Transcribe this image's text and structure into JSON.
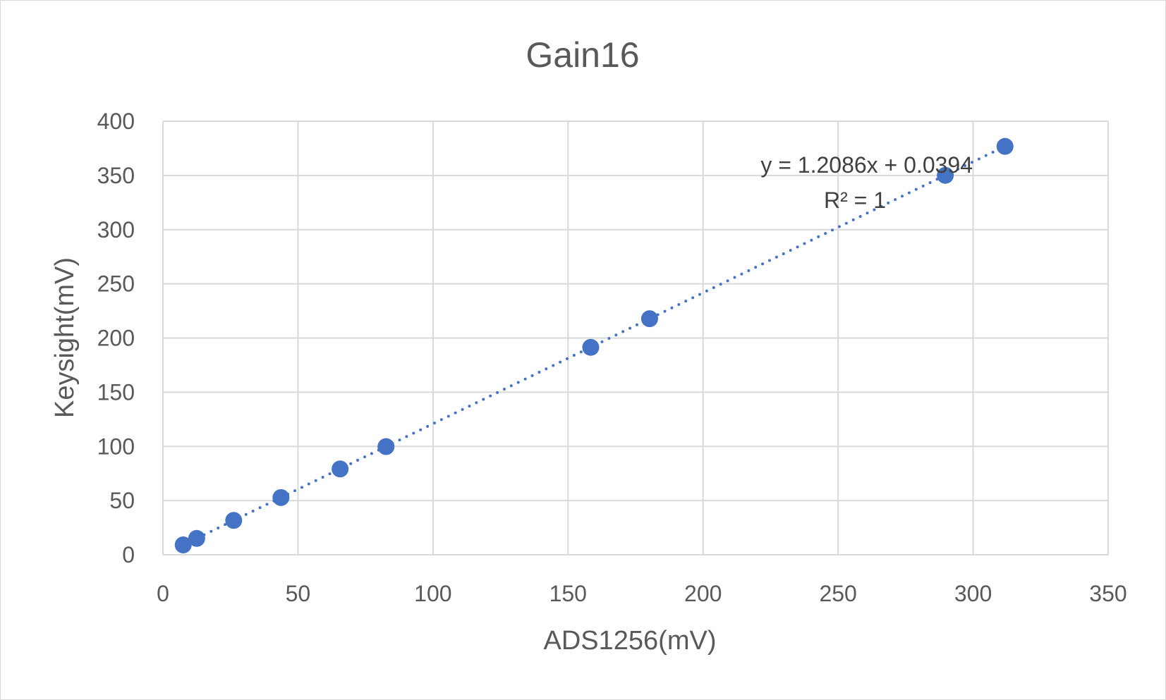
{
  "chart_data": {
    "type": "scatter",
    "title": "Gain16",
    "xlabel": "ADS1256(mV)",
    "ylabel": "Keysight(mV)",
    "xlim": [
      0,
      350
    ],
    "ylim": [
      0,
      400
    ],
    "x_ticks": [
      0,
      50,
      100,
      150,
      200,
      250,
      300,
      350
    ],
    "y_ticks": [
      0,
      50,
      100,
      150,
      200,
      250,
      300,
      350,
      400
    ],
    "grid": true,
    "legend": "none",
    "colors": {
      "series": "#4472c4",
      "grid": "#d9d9d9",
      "text": "#595959"
    },
    "series": [
      {
        "x": [
          7.5,
          12.5,
          26.2,
          43.7,
          65.6,
          82.6,
          158.4,
          180.2,
          289.7,
          311.8
        ],
        "y": [
          9.1,
          15.1,
          31.7,
          52.8,
          79.2,
          99.8,
          191.4,
          217.8,
          350.1,
          376.8
        ]
      }
    ],
    "trendline": {
      "type": "linear",
      "slope": 1.2086,
      "intercept": 0.0394,
      "equation": "y = 1.2086x + 0.0394",
      "r_squared": "R² = 1"
    }
  }
}
